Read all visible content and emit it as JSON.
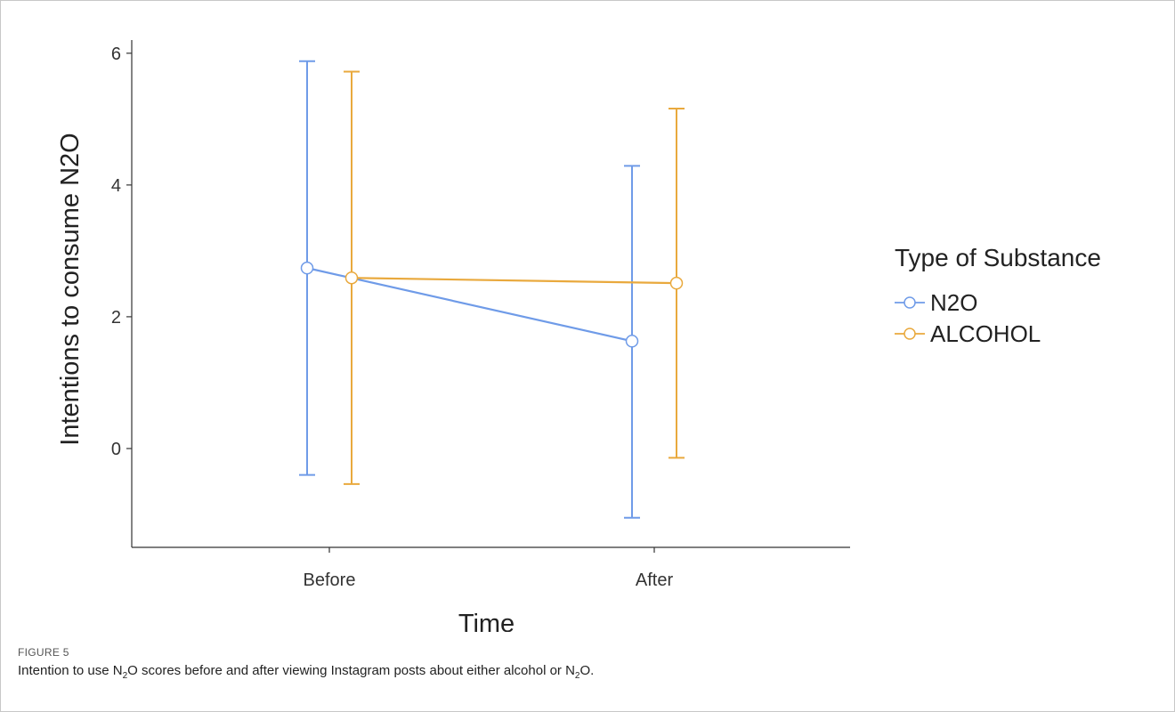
{
  "chart_data": {
    "type": "line",
    "xlabel": "Time",
    "ylabel": "Intentions to consume N2O",
    "categories": [
      "Before",
      "After"
    ],
    "ylim": [
      -1.5,
      6.2
    ],
    "yticks": [
      0,
      2,
      4,
      6
    ],
    "legend": {
      "title": "Type of Substance",
      "placement": "right"
    },
    "series": [
      {
        "name": "N2O",
        "color": "#6f9be8",
        "values": [
          2.74,
          1.63
        ],
        "lower": [
          -0.4,
          -1.05
        ],
        "upper": [
          5.88,
          4.29
        ]
      },
      {
        "name": "ALCOHOL",
        "color": "#e9a93d",
        "values": [
          2.59,
          2.51
        ],
        "lower": [
          -0.54,
          -0.14
        ],
        "upper": [
          5.72,
          5.16
        ]
      }
    ],
    "grid": false
  },
  "caption": {
    "label": "FIGURE 5",
    "text_parts": [
      "Intention to use N",
      "2",
      "O scores before and after viewing Instagram posts about either alcohol or N",
      "2",
      "O."
    ]
  }
}
